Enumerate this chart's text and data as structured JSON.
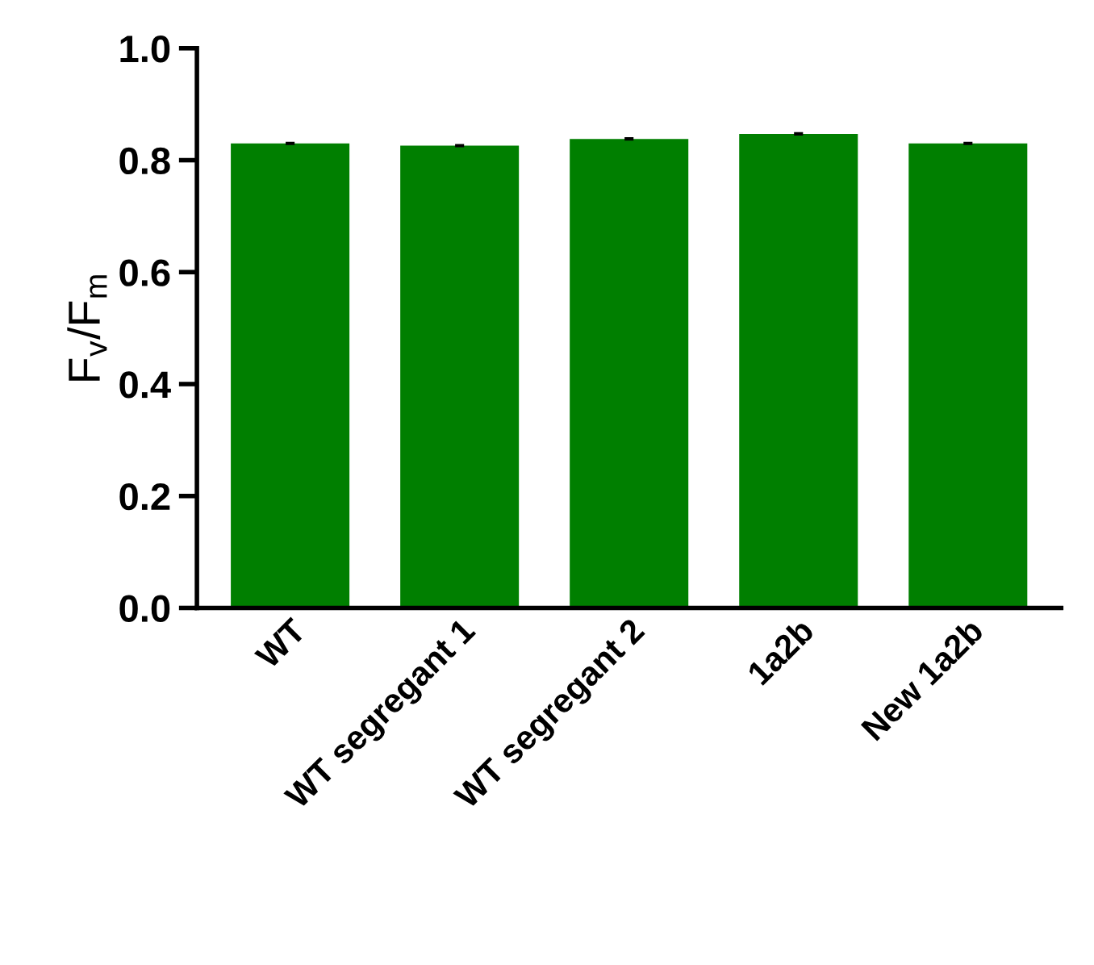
{
  "chart_data": {
    "type": "bar",
    "ylabel": "F$_{v}$/F$_{m}$",
    "categories": [
      "WT",
      "WT segregant 1",
      "WT segregant 2",
      "1a2b",
      "New 1a2b"
    ],
    "values": [
      0.83,
      0.826,
      0.838,
      0.847,
      0.83
    ],
    "errors": [
      0.003,
      0.003,
      0.003,
      0.003,
      0.003
    ],
    "color": "#007f00",
    "ylim": [
      0,
      1.0
    ],
    "yticks": [
      {
        "value": 0,
        "label": "0.0"
      },
      0.2,
      0.4,
      0.6,
      0.8,
      {
        "value": 1.0,
        "label": "1.0"
      }
    ],
    "grid": false
  }
}
